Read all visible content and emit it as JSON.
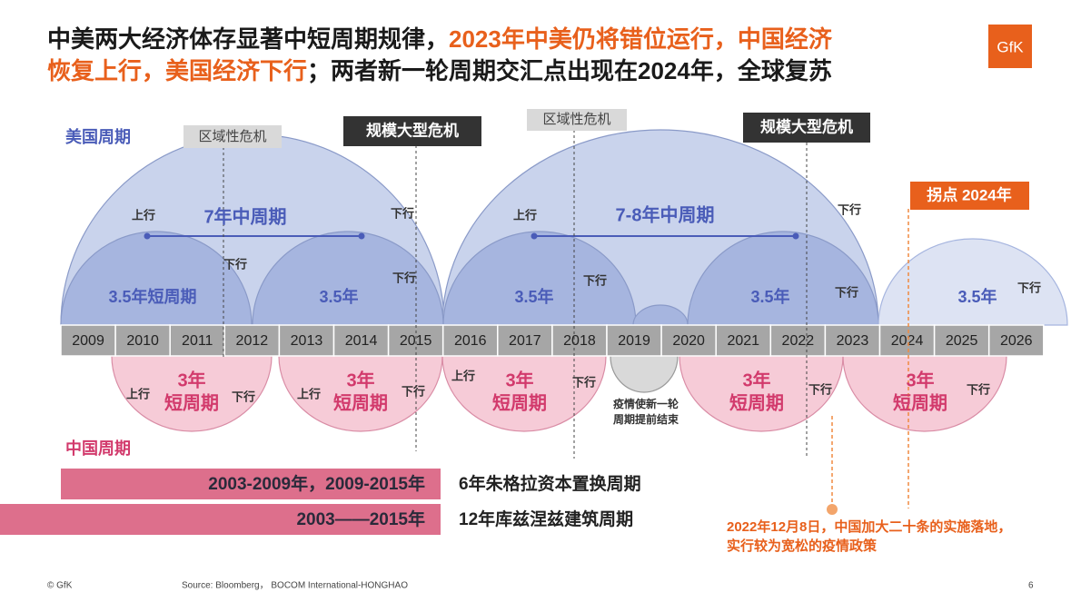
{
  "title": {
    "lines": [
      [
        {
          "text": "中美两大经济体存显著中短周期规律，",
          "color": "#1a1a1a"
        },
        {
          "text": "2023年中美仍将错位运行，中国经济",
          "color": "#e8601c"
        }
      ],
      [
        {
          "text": "恢复上行，美国经济下行",
          "color": "#e8601c"
        },
        {
          "text": "；两者新一轮周期交汇点出现在2024年，全球复苏",
          "color": "#1a1a1a"
        }
      ]
    ]
  },
  "logo": "GfK",
  "us_label": "美国周期",
  "china_label": "中国周期",
  "years": [
    "2009",
    "2010",
    "2011",
    "2012",
    "2013",
    "2014",
    "2015",
    "2016",
    "2017",
    "2018",
    "2019",
    "2020",
    "2021",
    "2022",
    "2023",
    "2024",
    "2025",
    "2026"
  ],
  "crises": [
    "区域性危机",
    "规模大型危机",
    "区域性危机",
    "规模大型危机"
  ],
  "turning_point": "拐点 2024年",
  "us_cycles": [
    {
      "label": "7年中周期",
      "up": "上行",
      "down": "下行"
    },
    {
      "label": "3.5年短周期",
      "down": "下行"
    },
    {
      "label": "3.5年",
      "down": "下行"
    },
    {
      "label": "7-8年中周期",
      "up": "上行",
      "down": "下行"
    },
    {
      "label": "3.5年",
      "down": "下行"
    },
    {
      "label": "3.5年",
      "down": "下行"
    },
    {
      "label": "3.5年",
      "down": "下行"
    }
  ],
  "china_cycles": [
    {
      "lines": [
        "3年",
        "短周期"
      ],
      "up": "上行",
      "down": "下行"
    },
    {
      "lines": [
        "3年",
        "短周期"
      ],
      "up": "上行",
      "down": "下行"
    },
    {
      "lines": [
        "3年",
        "短周期"
      ],
      "up": "上行",
      "down": "下行"
    },
    {
      "lines": [
        "疫情使新一轮",
        "周期提前结束"
      ]
    },
    {
      "lines": [
        "3年",
        "短周期"
      ],
      "down": "下行"
    },
    {
      "lines": [
        "3年",
        "短周期"
      ],
      "down": "下行"
    }
  ],
  "bars": [
    {
      "period": "2003-2009年，2009-2015年",
      "desc": "6年朱格拉资本置换周期"
    },
    {
      "period": "2003——2015年",
      "desc": "12年库兹涅兹建筑周期"
    }
  ],
  "annotation": [
    "2022年12月8日，中国加大二十条的实施落地，",
    "实行较为宽松的疫情政策"
  ],
  "footer": {
    "copyright": "© GfK",
    "source": "Source: Bloomberg， BOCOM International-HONGHAO",
    "page": "6"
  }
}
